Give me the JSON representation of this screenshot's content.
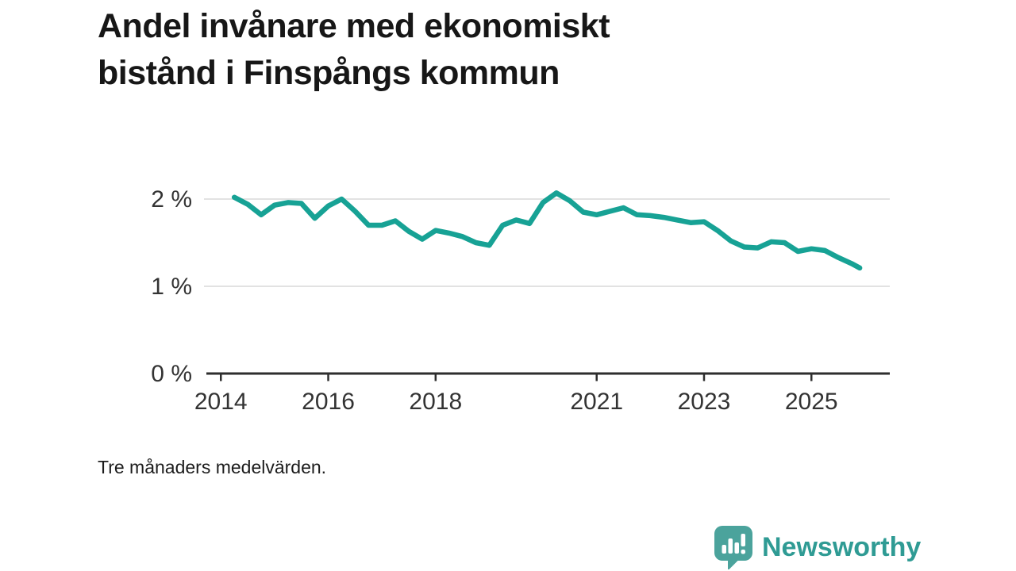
{
  "header": {
    "title_lines": [
      "Andel invånare med ekonomiskt",
      "bistånd i Finspångs kommun"
    ]
  },
  "footnote": "Tre månaders medelvärden.",
  "branding": {
    "name": "Newsworthy",
    "logo_icon": "bar-chart-speech-bubble",
    "logo_box_color": "#4ba39c",
    "logo_glyph_color": "#ffffff",
    "text_color": "#2f9b94"
  },
  "colors": {
    "line": "#17a295",
    "grid": "#e2e2e2",
    "axis": "#2e2e2e",
    "label": "#333333",
    "title": "#171717"
  },
  "chart_data": {
    "type": "line",
    "title": "Andel invånare med ekonomiskt bistånd i Finspångs kommun",
    "subtitle": "Tre månaders medelvärden.",
    "unit": "%",
    "grid": "horizontal",
    "legend": "none",
    "xlim": [
      2013.73,
      2026.46
    ],
    "ylim": [
      0,
      2
    ],
    "y_ticks": [
      {
        "value": 0,
        "label": "0 %"
      },
      {
        "value": 1,
        "label": "1 %"
      },
      {
        "value": 2,
        "label": "2 %"
      }
    ],
    "x_ticks": [
      {
        "year": 2014,
        "label": "2014"
      },
      {
        "year": 2016,
        "label": "2016"
      },
      {
        "year": 2018,
        "label": "2018"
      },
      {
        "year": 2021,
        "label": "2021"
      },
      {
        "year": 2023,
        "label": "2023"
      },
      {
        "year": 2025,
        "label": "2025"
      }
    ],
    "series": [
      {
        "name": "Andel invånare med ekonomiskt bistånd",
        "points": [
          [
            2014.25,
            2.02
          ],
          [
            2014.5,
            1.94
          ],
          [
            2014.75,
            1.82
          ],
          [
            2015.0,
            1.93
          ],
          [
            2015.25,
            1.96
          ],
          [
            2015.5,
            1.95
          ],
          [
            2015.75,
            1.78
          ],
          [
            2016.0,
            1.92
          ],
          [
            2016.25,
            2.0
          ],
          [
            2016.5,
            1.86
          ],
          [
            2016.75,
            1.7
          ],
          [
            2017.0,
            1.7
          ],
          [
            2017.25,
            1.75
          ],
          [
            2017.5,
            1.63
          ],
          [
            2017.75,
            1.54
          ],
          [
            2018.0,
            1.64
          ],
          [
            2018.25,
            1.61
          ],
          [
            2018.5,
            1.57
          ],
          [
            2018.75,
            1.5
          ],
          [
            2019.0,
            1.47
          ],
          [
            2019.25,
            1.7
          ],
          [
            2019.5,
            1.76
          ],
          [
            2019.75,
            1.72
          ],
          [
            2020.0,
            1.96
          ],
          [
            2020.25,
            2.07
          ],
          [
            2020.5,
            1.98
          ],
          [
            2020.75,
            1.85
          ],
          [
            2021.0,
            1.82
          ],
          [
            2021.25,
            1.86
          ],
          [
            2021.5,
            1.9
          ],
          [
            2021.75,
            1.82
          ],
          [
            2022.0,
            1.81
          ],
          [
            2022.25,
            1.79
          ],
          [
            2022.5,
            1.76
          ],
          [
            2022.75,
            1.73
          ],
          [
            2023.0,
            1.74
          ],
          [
            2023.25,
            1.64
          ],
          [
            2023.5,
            1.52
          ],
          [
            2023.75,
            1.45
          ],
          [
            2024.0,
            1.44
          ],
          [
            2024.25,
            1.51
          ],
          [
            2024.5,
            1.5
          ],
          [
            2024.75,
            1.4
          ],
          [
            2025.0,
            1.43
          ],
          [
            2025.25,
            1.41
          ],
          [
            2025.5,
            1.33
          ],
          [
            2025.75,
            1.26
          ],
          [
            2025.9,
            1.21
          ]
        ]
      }
    ]
  }
}
